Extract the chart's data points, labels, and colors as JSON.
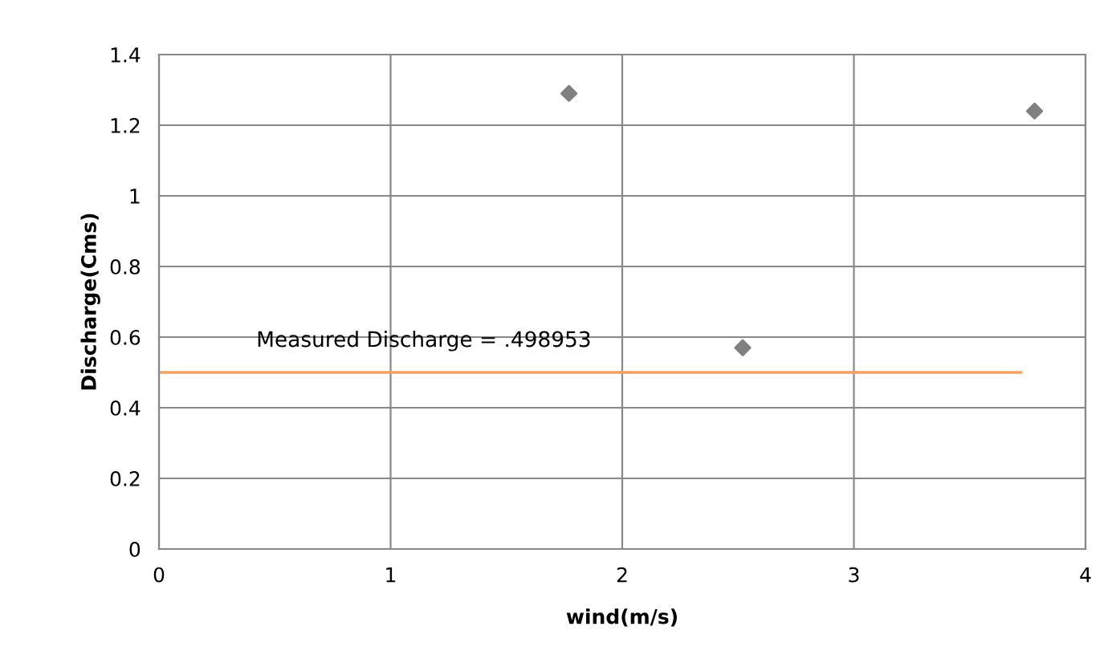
{
  "chart_data": {
    "type": "scatter",
    "xlabel": "wind(m/s)",
    "ylabel": "Discharge(Cms)",
    "series": [
      {
        "color": "#808080",
        "marker": "diamond",
        "x": [
          1.77,
          2.52,
          3.78
        ],
        "values": [
          1.29,
          0.57,
          1.24
        ]
      },
      {
        "type": "line",
        "color": "#f0a060",
        "marker": "none",
        "x": [
          0,
          3.72
        ],
        "values": [
          0.5,
          0.5
        ]
      }
    ],
    "annotations": [
      "Measured Discharge = .498953"
    ],
    "xlim": [
      0,
      4
    ],
    "xticks": [
      0,
      1,
      2,
      3,
      4
    ],
    "ylim": [
      0,
      1.4
    ],
    "yticks": [
      0,
      0.2,
      0.4,
      0.6,
      0.8,
      1,
      1.2,
      1.4
    ],
    "grid": true,
    "legend": false
  }
}
